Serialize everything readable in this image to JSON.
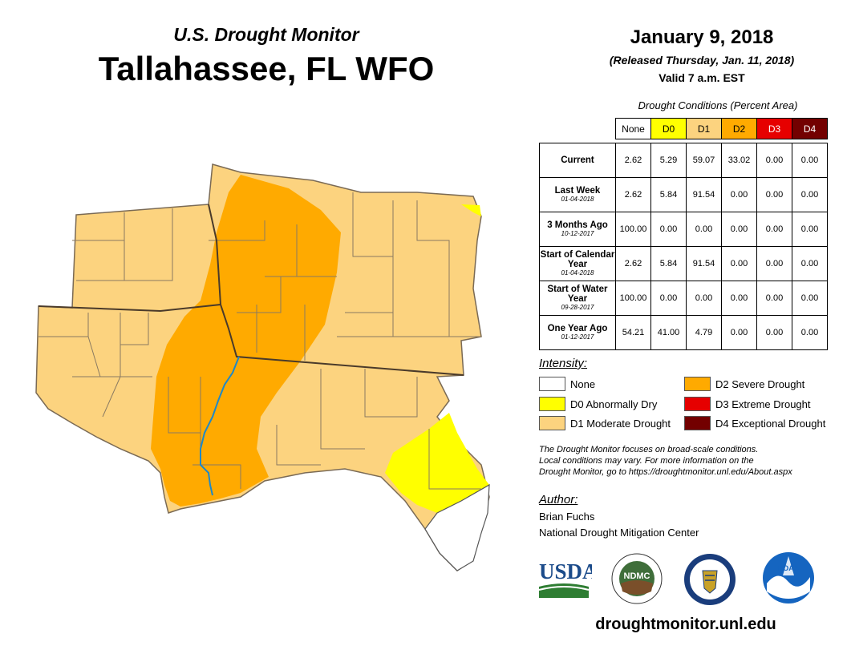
{
  "header": {
    "subtitle": "U.S. Drought Monitor",
    "title": "Tallahassee, FL WFO",
    "date": "January 9, 2018",
    "released": "(Released Thursday, Jan. 11, 2018)",
    "valid": "Valid 7 a.m. EST"
  },
  "table": {
    "caption": "Drought Conditions (Percent Area)",
    "columns": [
      "None",
      "D0",
      "D1",
      "D2",
      "D3",
      "D4"
    ],
    "column_colors": [
      "#ffffff",
      "#ffff00",
      "#fcd37f",
      "#ffaa00",
      "#e60000",
      "#730000"
    ],
    "column_text_colors": [
      "#000000",
      "#000000",
      "#000000",
      "#000000",
      "#ffffff",
      "#ffffff"
    ],
    "rows": [
      {
        "label": "Current",
        "sublabel": "",
        "values": [
          "2.62",
          "5.29",
          "59.07",
          "33.02",
          "0.00",
          "0.00"
        ]
      },
      {
        "label": "Last Week",
        "sublabel": "01-04-2018",
        "values": [
          "2.62",
          "5.84",
          "91.54",
          "0.00",
          "0.00",
          "0.00"
        ]
      },
      {
        "label": "3 Months Ago",
        "sublabel": "10-12-2017",
        "values": [
          "100.00",
          "0.00",
          "0.00",
          "0.00",
          "0.00",
          "0.00"
        ]
      },
      {
        "label": "Start of Calendar Year",
        "sublabel": "01-04-2018",
        "values": [
          "2.62",
          "5.84",
          "91.54",
          "0.00",
          "0.00",
          "0.00"
        ]
      },
      {
        "label": "Start of Water Year",
        "sublabel": "09-28-2017",
        "values": [
          "100.00",
          "0.00",
          "0.00",
          "0.00",
          "0.00",
          "0.00"
        ]
      },
      {
        "label": "One Year Ago",
        "sublabel": "01-12-2017",
        "values": [
          "54.21",
          "41.00",
          "4.79",
          "0.00",
          "0.00",
          "0.00"
        ]
      }
    ]
  },
  "legend": {
    "title": "Intensity:",
    "items": [
      {
        "label": "None",
        "color": "#ffffff"
      },
      {
        "label": "D0 Abnormally Dry",
        "color": "#ffff00"
      },
      {
        "label": "D1 Moderate Drought",
        "color": "#fcd37f"
      },
      {
        "label": "D2 Severe Drought",
        "color": "#ffaa00"
      },
      {
        "label": "D3 Extreme Drought",
        "color": "#e60000"
      },
      {
        "label": "D4 Exceptional Drought",
        "color": "#730000"
      }
    ]
  },
  "note": {
    "line1": "The Drought Monitor focuses on broad-scale conditions.",
    "line2": "Local conditions may vary. For more information on the",
    "line3": "Drought Monitor, go to https://droughtmonitor.unl.edu/About.aspx"
  },
  "author": {
    "title": "Author:",
    "name": "Brian Fuchs",
    "org": "National Drought Mitigation Center"
  },
  "logos": {
    "usda": "USDA",
    "ndmc": "NDMC",
    "noaa": "NOAA"
  },
  "footer": {
    "url": "droughtmonitor.unl.edu"
  },
  "map_colors": {
    "d0": "#ffff00",
    "d1": "#fcd37f",
    "d2": "#ffaa00",
    "none": "#ffffff",
    "river": "#1e88c8",
    "border": "#7a6a55"
  }
}
